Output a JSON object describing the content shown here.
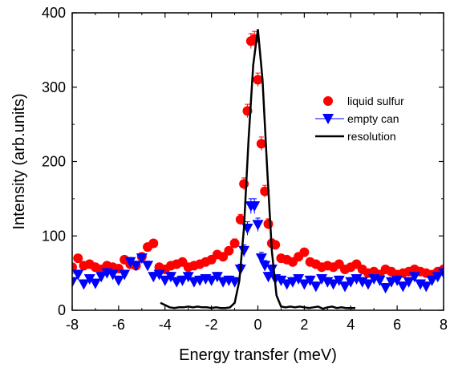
{
  "chart_data": {
    "type": "scatter",
    "xlabel": "Energy transfer (meV)",
    "ylabel": "Intensity (arb.units)",
    "xlim": [
      -8,
      8
    ],
    "ylim": [
      0,
      400
    ],
    "xticks": [
      -8,
      -6,
      -4,
      -2,
      0,
      2,
      4,
      6,
      8
    ],
    "yticks": [
      0,
      100,
      200,
      300,
      400
    ],
    "xtick_labels": [
      "-8",
      "-6",
      "-4",
      "-2",
      "0",
      "2",
      "4",
      "6",
      "8"
    ],
    "ytick_labels": [
      "0",
      "100",
      "200",
      "300",
      "400"
    ],
    "legend_position": "upper-right",
    "series": [
      {
        "name": "liquid sulfur",
        "marker": "circle",
        "color": "#ff0000",
        "x": [
          -8.0,
          -7.75,
          -7.5,
          -7.25,
          -7.0,
          -6.75,
          -6.5,
          -6.25,
          -6.0,
          -5.75,
          -5.5,
          -5.25,
          -5.0,
          -4.75,
          -4.5,
          -4.25,
          -4.0,
          -3.75,
          -3.5,
          -3.25,
          -3.0,
          -2.75,
          -2.5,
          -2.25,
          -2.0,
          -1.75,
          -1.5,
          -1.25,
          -1.0,
          -0.75,
          -0.6,
          -0.45,
          -0.3,
          -0.15,
          0.0,
          0.15,
          0.3,
          0.45,
          0.6,
          0.75,
          1.0,
          1.25,
          1.5,
          1.75,
          2.0,
          2.25,
          2.5,
          2.75,
          3.0,
          3.25,
          3.5,
          3.75,
          4.0,
          4.25,
          4.5,
          4.75,
          5.0,
          5.25,
          5.5,
          5.75,
          6.0,
          6.25,
          6.5,
          6.75,
          7.0,
          7.25,
          7.5,
          7.75,
          8.0
        ],
        "y": [
          58,
          70,
          60,
          62,
          58,
          55,
          60,
          58,
          56,
          68,
          62,
          60,
          72,
          85,
          90,
          58,
          55,
          60,
          62,
          65,
          58,
          60,
          62,
          65,
          68,
          75,
          72,
          80,
          90,
          122,
          170,
          268,
          362,
          365,
          310,
          224,
          160,
          116,
          90,
          88,
          70,
          68,
          65,
          72,
          78,
          65,
          62,
          58,
          60,
          58,
          62,
          55,
          58,
          62,
          55,
          50,
          52,
          48,
          55,
          52,
          48,
          50,
          52,
          55,
          52,
          50,
          48,
          52,
          55
        ],
        "error": [
          5,
          5,
          5,
          5,
          5,
          5,
          5,
          5,
          5,
          5,
          5,
          5,
          5,
          5,
          5,
          5,
          5,
          5,
          5,
          5,
          5,
          5,
          5,
          5,
          5,
          5,
          5,
          5,
          6,
          7,
          8,
          9,
          10,
          10,
          9,
          9,
          8,
          7,
          6,
          5,
          5,
          5,
          5,
          5,
          5,
          5,
          5,
          5,
          5,
          5,
          5,
          5,
          5,
          5,
          5,
          5,
          5,
          5,
          5,
          5,
          5,
          5,
          5,
          5,
          5,
          5,
          5,
          5,
          5
        ]
      },
      {
        "name": "empty can",
        "marker": "triangle-down",
        "color": "#0000ff",
        "x": [
          -8.0,
          -7.75,
          -7.5,
          -7.25,
          -7.0,
          -6.75,
          -6.5,
          -6.25,
          -6.0,
          -5.75,
          -5.5,
          -5.25,
          -5.0,
          -4.75,
          -4.5,
          -4.25,
          -4.0,
          -3.75,
          -3.5,
          -3.25,
          -3.0,
          -2.75,
          -2.5,
          -2.25,
          -2.0,
          -1.75,
          -1.5,
          -1.25,
          -1.0,
          -0.75,
          -0.6,
          -0.45,
          -0.3,
          -0.15,
          0.0,
          0.15,
          0.3,
          0.45,
          0.6,
          0.75,
          1.0,
          1.25,
          1.5,
          1.75,
          2.0,
          2.25,
          2.5,
          2.75,
          3.0,
          3.25,
          3.5,
          3.75,
          4.0,
          4.25,
          4.5,
          4.75,
          5.0,
          5.25,
          5.5,
          5.75,
          6.0,
          6.25,
          6.5,
          6.75,
          7.0,
          7.25,
          7.5,
          7.75,
          8.0
        ],
        "y": [
          38,
          48,
          35,
          42,
          36,
          45,
          50,
          48,
          40,
          48,
          65,
          60,
          70,
          60,
          45,
          48,
          40,
          45,
          38,
          40,
          45,
          38,
          40,
          42,
          40,
          45,
          38,
          40,
          38,
          55,
          80,
          110,
          140,
          140,
          115,
          70,
          60,
          45,
          55,
          42,
          40,
          35,
          38,
          42,
          35,
          40,
          32,
          42,
          38,
          35,
          40,
          32,
          38,
          42,
          38,
          35,
          42,
          40,
          30,
          38,
          40,
          32,
          38,
          45,
          35,
          32,
          40,
          45,
          50
        ],
        "error": [
          6,
          6,
          6,
          6,
          6,
          6,
          6,
          6,
          6,
          6,
          6,
          6,
          6,
          6,
          6,
          6,
          6,
          6,
          6,
          6,
          6,
          6,
          6,
          6,
          6,
          6,
          6,
          6,
          6,
          7,
          8,
          9,
          10,
          10,
          9,
          8,
          7,
          6,
          6,
          6,
          6,
          6,
          6,
          6,
          6,
          6,
          6,
          6,
          6,
          6,
          6,
          6,
          6,
          6,
          6,
          6,
          6,
          6,
          6,
          6,
          6,
          6,
          6,
          6,
          6,
          6,
          6,
          6,
          6
        ]
      },
      {
        "name": "resolution",
        "marker": "line",
        "color": "#000000",
        "x": [
          -4.2,
          -4.0,
          -3.8,
          -3.6,
          -3.4,
          -3.2,
          -3.0,
          -2.8,
          -2.6,
          -2.4,
          -2.2,
          -2.0,
          -1.8,
          -1.6,
          -1.4,
          -1.2,
          -1.0,
          -0.8,
          -0.6,
          -0.4,
          -0.2,
          0.0,
          0.2,
          0.4,
          0.6,
          0.8,
          1.0,
          1.2,
          1.4,
          1.6,
          1.8,
          2.0,
          2.2,
          2.4,
          2.6,
          2.8,
          3.0,
          3.2,
          3.4,
          3.6,
          3.8,
          4.0,
          4.2
        ],
        "y": [
          10,
          7,
          4,
          3,
          4,
          4,
          5,
          4,
          5,
          4,
          4,
          3,
          4,
          3,
          3,
          4,
          10,
          40,
          110,
          230,
          330,
          378,
          310,
          190,
          80,
          20,
          5,
          4,
          5,
          4,
          5,
          4,
          3,
          4,
          5,
          2,
          4,
          5,
          3,
          4,
          3,
          3,
          3
        ]
      }
    ]
  }
}
